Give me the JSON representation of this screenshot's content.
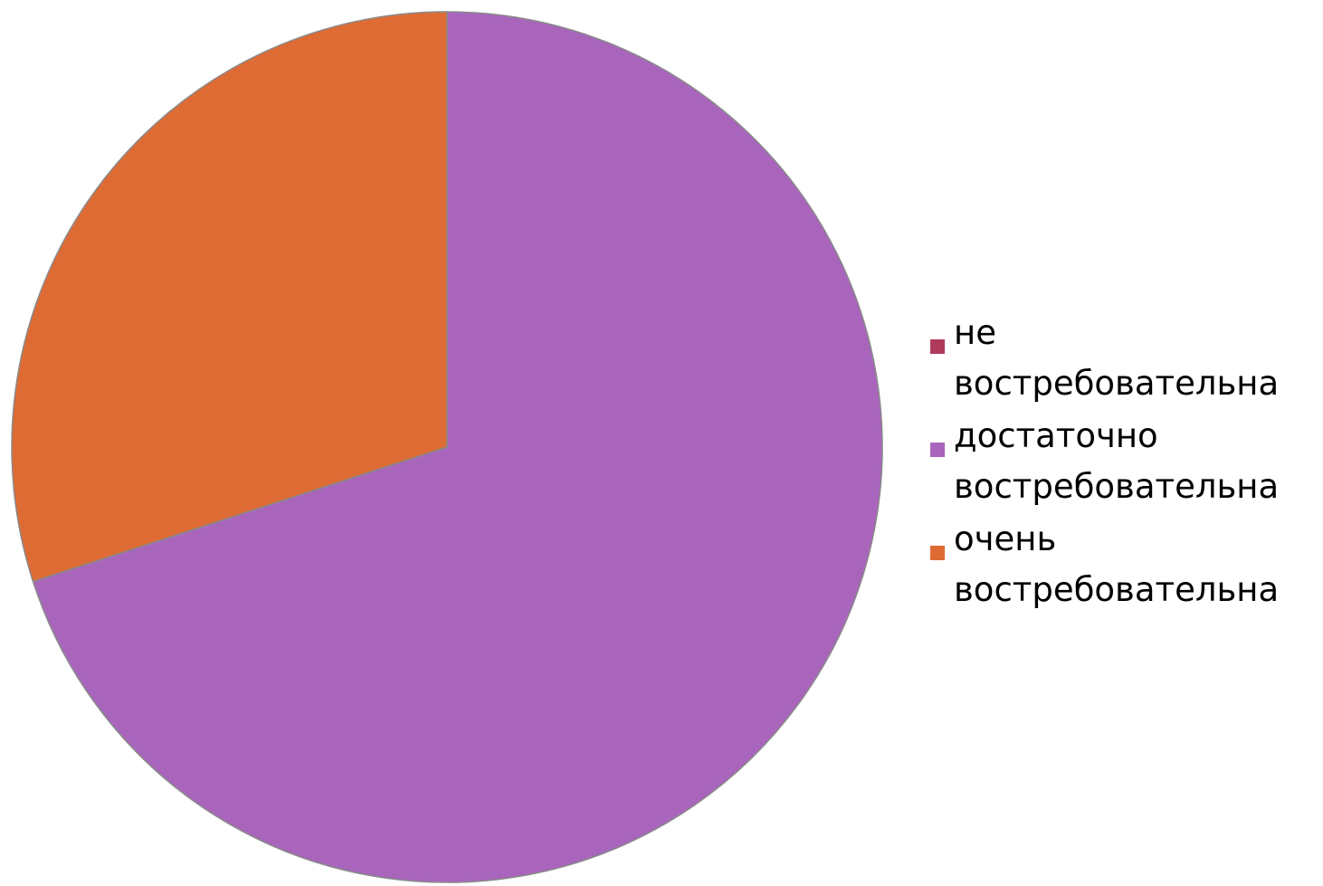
{
  "chart_data": {
    "type": "pie",
    "categories": [
      "не востребовательна",
      "достаточно востребовательна",
      "очень востребовательна"
    ],
    "values": [
      0,
      70,
      30
    ],
    "colors": [
      "#b03a5b",
      "#a865bb",
      "#de6b34"
    ],
    "legend_position": "right",
    "legend": [
      {
        "label": "не востребовательна",
        "color": "#b03a5b"
      },
      {
        "label": "достаточно востребовательна",
        "color": "#a865bb"
      },
      {
        "label": "очень востребовательна",
        "color": "#de6b34"
      }
    ]
  }
}
